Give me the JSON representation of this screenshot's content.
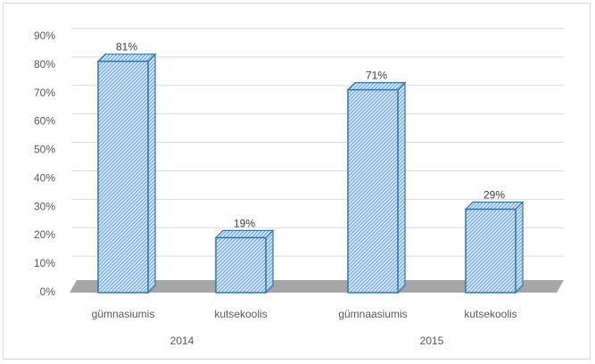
{
  "chart_data": {
    "type": "bar",
    "style": "3d-column",
    "groups": [
      {
        "label": "2014",
        "categories": [
          "gümnasiumis",
          "kutsekoolis"
        ],
        "values": [
          81,
          19
        ],
        "data_labels": [
          "81%",
          "19%"
        ]
      },
      {
        "label": "2015",
        "categories": [
          "gümnaasiumis",
          "kutsekoolis"
        ],
        "values": [
          71,
          29
        ],
        "data_labels": [
          "71%",
          "29%"
        ]
      }
    ],
    "y_ticks": [
      "0%",
      "10%",
      "20%",
      "30%",
      "40%",
      "50%",
      "60%",
      "70%",
      "80%",
      "90%"
    ],
    "ylim": [
      0,
      90
    ],
    "grid": true,
    "legend": "none",
    "colors": {
      "bar_fill": "#d6e6f7",
      "bar_hatch": "#5b9bd5",
      "bar_edge": "#2e75b6",
      "floor": "#a6a6a6",
      "grid": "#d9d9d9"
    }
  }
}
